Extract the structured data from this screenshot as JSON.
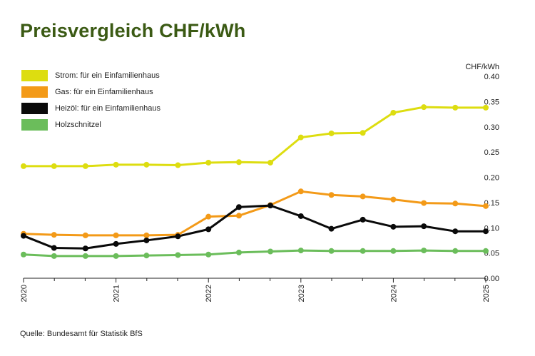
{
  "chart_data": {
    "type": "line",
    "title": "Preisvergleich CHF/kWh",
    "ylabel": "CHF/kWh",
    "xlabel": "",
    "ylim": [
      0,
      0.4
    ],
    "xlim": [
      2020,
      2025
    ],
    "y_ticks": [
      "0.00",
      "0.05",
      "0.10",
      "0.15",
      "0.20",
      "0.25",
      "0.30",
      "0.35",
      "0.40"
    ],
    "x_ticks": [
      "2020",
      "2021",
      "2022",
      "2023",
      "2024",
      "2025"
    ],
    "x": [
      2020.0,
      2020.33,
      2020.67,
      2021.0,
      2021.33,
      2021.67,
      2022.0,
      2022.33,
      2022.67,
      2023.0,
      2023.33,
      2023.67,
      2024.0,
      2024.33,
      2024.67,
      2025.0
    ],
    "grid": false,
    "legend_position": "top-left",
    "series": [
      {
        "name": "Strom: für ein Einfamilienhaus",
        "color": "#dddd10",
        "values": [
          0.222,
          0.222,
          0.222,
          0.225,
          0.225,
          0.224,
          0.229,
          0.23,
          0.229,
          0.279,
          0.287,
          0.288,
          0.328,
          0.339,
          0.338,
          0.338
        ]
      },
      {
        "name": "Gas: für ein Einfamilienhaus",
        "color": "#f39a18",
        "values": [
          0.088,
          0.086,
          0.085,
          0.085,
          0.085,
          0.086,
          0.122,
          0.124,
          0.145,
          0.172,
          0.165,
          0.162,
          0.156,
          0.149,
          0.148,
          0.143
        ]
      },
      {
        "name": "Heizöl: für ein Einfamilienhaus",
        "color": "#0a0a0a",
        "values": [
          0.084,
          0.06,
          0.059,
          0.068,
          0.075,
          0.083,
          0.097,
          0.141,
          0.144,
          0.123,
          0.098,
          0.116,
          0.102,
          0.103,
          0.093,
          0.093
        ]
      },
      {
        "name": "Holzschnitzel",
        "color": "#6bbd5b",
        "values": [
          0.047,
          0.044,
          0.044,
          0.044,
          0.045,
          0.046,
          0.047,
          0.051,
          0.053,
          0.055,
          0.054,
          0.054,
          0.054,
          0.055,
          0.054,
          0.054
        ]
      }
    ]
  },
  "source": "Quelle: Bundesamt für Statistik BfS"
}
